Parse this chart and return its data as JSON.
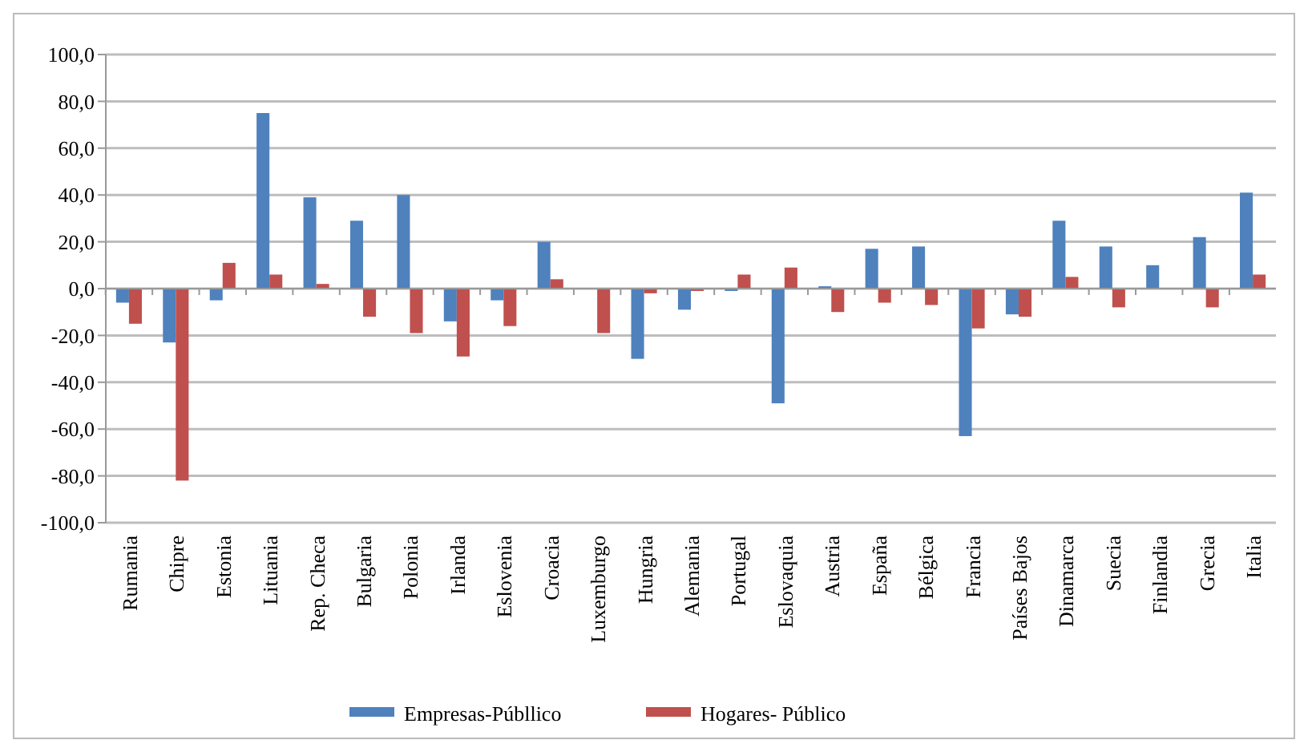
{
  "chart_data": {
    "type": "bar",
    "categories": [
      "Rumania",
      "Chipre",
      "Estonia",
      "Lituania",
      "Rep. Checa",
      "Bulgaria",
      "Polonia",
      "Irlanda",
      "Eslovenia",
      "Croacia",
      "Luxemburgo",
      "Hungria",
      "Alemania",
      "Portugal",
      "Eslovaquia",
      "Austria",
      "España",
      "Bélgica",
      "Francia",
      "Países Bajos",
      "Dinamarca",
      "Suecia",
      "Finlandia",
      "Grecia",
      "Italia"
    ],
    "series": [
      {
        "name": "Empresas-Públlico",
        "color": "#4f81bd",
        "values": [
          -6,
          -23,
          -5,
          75,
          39,
          29,
          40,
          -14,
          -5,
          20,
          0,
          -30,
          -9,
          -1,
          -49,
          1,
          17,
          18,
          -63,
          -11,
          29,
          18,
          10,
          22,
          41
        ]
      },
      {
        "name": "Hogares- Público",
        "color": "#c0504d",
        "values": [
          -15,
          -82,
          11,
          6,
          2,
          -12,
          -19,
          -29,
          -16,
          4,
          -19,
          -2,
          -1,
          6,
          9,
          -10,
          -6,
          -7,
          -17,
          -12,
          5,
          -8,
          0,
          -8,
          6
        ]
      }
    ],
    "ylim": [
      -100,
      100
    ],
    "yticks": [
      {
        "value": -100,
        "label": "-100,0"
      },
      {
        "value": -80,
        "label": "-80,0"
      },
      {
        "value": -60,
        "label": "-60,0"
      },
      {
        "value": -40,
        "label": "-40,0"
      },
      {
        "value": -20,
        "label": "-20,0"
      },
      {
        "value": 0,
        "label": "0,0"
      },
      {
        "value": 20,
        "label": "20,0"
      },
      {
        "value": 40,
        "label": "40,0"
      },
      {
        "value": 60,
        "label": "60,0"
      },
      {
        "value": 80,
        "label": "80,0"
      },
      {
        "value": 100,
        "label": "100,0"
      }
    ],
    "grid": "y",
    "legend": "bottom"
  }
}
